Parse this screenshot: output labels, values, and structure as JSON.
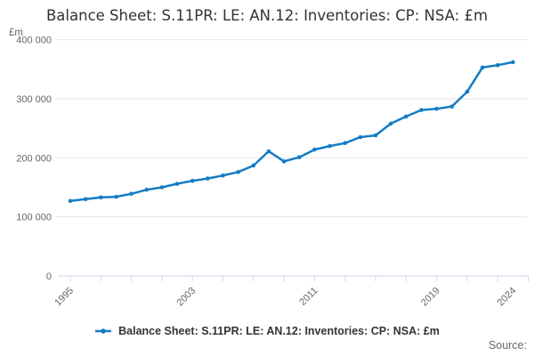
{
  "title": "Balance Sheet: S.11PR: LE: AN.12: Inventories: CP: NSA: £m",
  "y_axis_unit": "£m",
  "source_label": "Source:",
  "legend": {
    "label": "Balance Sheet: S.11PR: LE: AN.12: Inventories: CP: NSA: £m"
  },
  "colors": {
    "line": "#147cc4",
    "grid": "#e6e6e6",
    "axis": "#ccd6eb",
    "tick_label": "#666666",
    "title": "#333333"
  },
  "chart_data": {
    "type": "line",
    "title": "Balance Sheet: S.11PR: LE: AN.12: Inventories: CP: NSA: £m",
    "xlabel": "",
    "ylabel": "£m",
    "x": [
      1995,
      1996,
      1997,
      1998,
      1999,
      2000,
      2001,
      2002,
      2003,
      2004,
      2005,
      2006,
      2007,
      2008,
      2009,
      2010,
      2011,
      2012,
      2013,
      2014,
      2015,
      2016,
      2017,
      2018,
      2019,
      2020,
      2021,
      2022,
      2023,
      2024
    ],
    "series": [
      {
        "name": "Balance Sheet: S.11PR: LE: AN.12: Inventories: CP: NSA: £m",
        "values": [
          127000,
          130000,
          133000,
          134000,
          139000,
          146000,
          150000,
          156000,
          161000,
          165000,
          170000,
          176000,
          187000,
          211000,
          194000,
          201000,
          214000,
          220000,
          225000,
          235000,
          238000,
          258000,
          270000,
          281000,
          283000,
          287000,
          312000,
          353000,
          357000,
          362000
        ]
      }
    ],
    "ylim": [
      0,
      400000
    ],
    "yticks": [
      0,
      100000,
      200000,
      300000,
      400000
    ],
    "ytick_labels": [
      "0",
      "100 000",
      "200 000",
      "300 000",
      "400 000"
    ],
    "xticks_every_years": 2,
    "xtick_label_years": [
      1995,
      2003,
      2011,
      2019,
      2024
    ],
    "grid": true,
    "legend_position": "bottom",
    "marker": "circle"
  }
}
